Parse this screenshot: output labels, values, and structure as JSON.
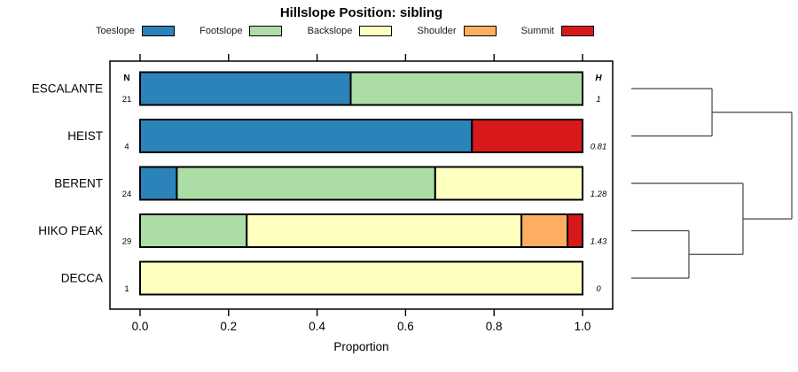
{
  "title": "Hillslope Position: sibling",
  "legend": {
    "items": [
      {
        "label": "Toeslope",
        "color": "#2B83BA"
      },
      {
        "label": "Footslope",
        "color": "#ABDDA4"
      },
      {
        "label": "Backslope",
        "color": "#FFFFBF"
      },
      {
        "label": "Shoulder",
        "color": "#FDAE61"
      },
      {
        "label": "Summit",
        "color": "#D7191C"
      }
    ]
  },
  "axis": {
    "label": "Proportion",
    "tick_labels": [
      "0.0",
      "0.2",
      "0.4",
      "0.6",
      "0.8",
      "1.0"
    ],
    "tick_values": [
      0,
      0.2,
      0.4,
      0.6,
      0.8,
      1.0
    ]
  },
  "columns": {
    "n_header": "N",
    "h_header": "H"
  },
  "chart_data": {
    "type": "bar",
    "variant": "horizontal-stacked-proportion",
    "title": "Hillslope Position: sibling",
    "xlabel": "Proportion",
    "xlim": [
      0,
      1
    ],
    "grid": false,
    "legend_position": "top",
    "categories": [
      "ESCALANTE",
      "HEIST",
      "BERENT",
      "HIKO PEAK",
      "DECCA"
    ],
    "n_values": [
      "21",
      "4",
      "24",
      "29",
      "1"
    ],
    "h_values": [
      "1",
      "0.81",
      "1.28",
      "1.43",
      "0"
    ],
    "series": [
      {
        "name": "Toeslope",
        "color": "#2B83BA",
        "values": [
          0.476,
          0.75,
          0.083,
          0,
          0
        ]
      },
      {
        "name": "Footslope",
        "color": "#ABDDA4",
        "values": [
          0.524,
          0,
          0.584,
          0.241,
          0
        ]
      },
      {
        "name": "Backslope",
        "color": "#FFFFBF",
        "values": [
          0,
          0,
          0.333,
          0.621,
          1.0
        ]
      },
      {
        "name": "Shoulder",
        "color": "#FDAE61",
        "values": [
          0,
          0,
          0,
          0.104,
          0
        ]
      },
      {
        "name": "Summit",
        "color": "#D7191C",
        "values": [
          0,
          0.25,
          0,
          0.034,
          0
        ]
      }
    ],
    "dendrogram": {
      "leaf_order": [
        "ESCALANTE",
        "HEIST",
        "BERENT",
        "HIKO PEAK",
        "DECCA"
      ],
      "merges": [
        {
          "id": "m0",
          "a": "ESCALANTE",
          "b": "HEIST",
          "height": 0.503
        },
        {
          "id": "m1",
          "a": "HIKO PEAK",
          "b": "DECCA",
          "height": 0.359
        },
        {
          "id": "m2",
          "a": "BERENT",
          "b": "m1",
          "height": 0.696
        },
        {
          "id": "m3",
          "a": "m0",
          "b": "m2",
          "height": 1.0
        }
      ]
    },
    "colors": {
      "bar_border": "#000000",
      "box_border": "#000000",
      "dendrogram_line": "#444444"
    }
  }
}
